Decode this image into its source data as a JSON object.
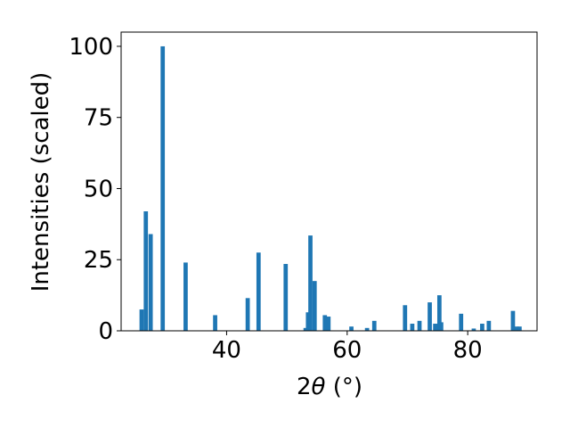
{
  "chart_data": {
    "type": "bar",
    "xlabel_prefix": "2",
    "xlabel_symbol": "θ",
    "xlabel_suffix": " (°)",
    "ylabel": "Intensities (scaled)",
    "xlim": [
      22.5,
      91.5
    ],
    "ylim": [
      0,
      105
    ],
    "xticks": [
      40,
      60,
      80
    ],
    "yticks": [
      0,
      25,
      50,
      75,
      100
    ],
    "bar_width": 0.7,
    "color": "#1f77b4",
    "grid": false,
    "x": [
      25.9,
      26.6,
      27.4,
      29.4,
      33.2,
      38.1,
      43.5,
      45.3,
      49.8,
      53.1,
      53.5,
      53.9,
      54.6,
      56.3,
      56.9,
      60.7,
      63.3,
      64.5,
      69.6,
      70.8,
      72.0,
      73.7,
      74.6,
      75.3,
      75.6,
      78.9,
      81.0,
      82.4,
      83.5,
      87.5,
      88.1,
      88.6
    ],
    "values": [
      7.5,
      42,
      34,
      100,
      24,
      5.5,
      11.5,
      27.5,
      23.5,
      1,
      6.5,
      33.5,
      17.5,
      5.5,
      5,
      1.5,
      1,
      3.5,
      9,
      2.5,
      3.5,
      10,
      2.5,
      12.5,
      3,
      6,
      0.8,
      2.5,
      3.5,
      7,
      1.5,
      1.5
    ]
  }
}
